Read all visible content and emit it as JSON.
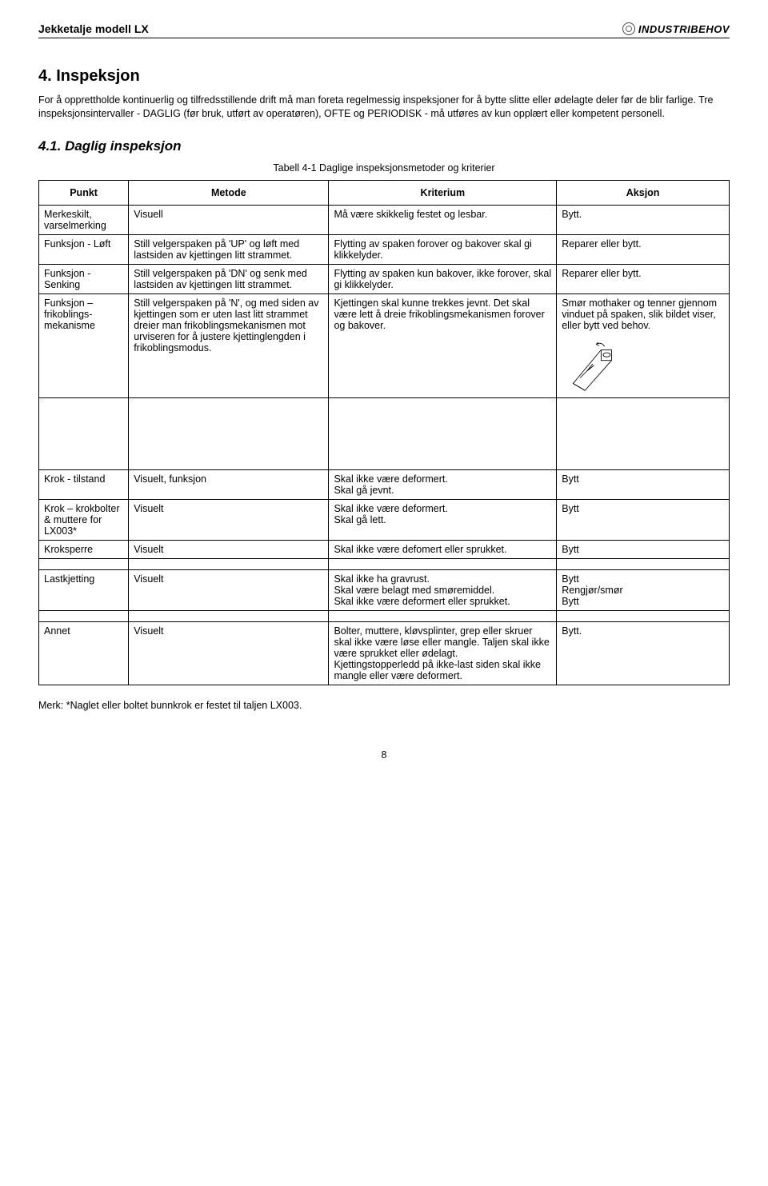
{
  "header": {
    "title": "Jekketalje modell LX",
    "logo_text": "INDUSTRIBEHOV"
  },
  "section": {
    "number_title": "4. Inspeksjon",
    "intro": "For å opprettholde kontinuerlig og tilfredsstillende drift må man foreta regelmessig inspeksjoner for å bytte slitte eller ødelagte deler før de blir farlige. Tre inspeksjonsintervaller - DAGLIG (før bruk, utført av operatøren), OFTE og PERIODISK - må utføres av kun opplært eller kompetent personell."
  },
  "subsection": {
    "title": "4.1. Daglig inspeksjon",
    "caption": "Tabell 4-1 Daglige inspeksjonsmetoder og kriterier"
  },
  "table": {
    "headers": [
      "Punkt",
      "Metode",
      "Kriterium",
      "Aksjon"
    ],
    "rows_a": [
      {
        "punkt": "Merkeskilt, varselmerking",
        "metode": "Visuell",
        "kriterium": "Må være skikkelig festet og lesbar.",
        "aksjon": "Bytt."
      },
      {
        "punkt": "Funksjon - Løft",
        "metode": "Still velgerspaken på 'UP' og løft med lastsiden av kjettingen litt strammet.",
        "kriterium": "Flytting av spaken forover og bakover skal gi klikkelyder.",
        "aksjon": "Reparer eller bytt."
      },
      {
        "punkt": "Funksjon - Senking",
        "metode": "Still velgerspaken på 'DN' og senk med lastsiden av kjettingen litt strammet.",
        "kriterium": "Flytting av spaken kun bakover, ikke forover, skal gi klikkelyder.",
        "aksjon": "Reparer eller bytt."
      },
      {
        "punkt": "Funksjon – frikoblings-mekanisme",
        "metode": "Still velgerspaken på 'N', og med siden av kjettingen som er uten last litt strammet dreier man frikoblingsmekanismen mot urviseren for å justere kjettinglengden i frikoblingsmodus.",
        "kriterium": "Kjettingen skal kunne trekkes jevnt. Det skal være lett å dreie frikoblingsmekanismen forover og bakover.",
        "aksjon": "Smør mothaker og tenner gjennom vinduet på spaken, slik bildet viser, eller bytt ved behov."
      }
    ],
    "rows_b": [
      {
        "punkt": "Krok - tilstand",
        "metode": "Visuelt, funksjon",
        "kriterium": "Skal ikke være deformert.\nSkal gå jevnt.",
        "aksjon": "Bytt"
      },
      {
        "punkt": "Krok – krokbolter & muttere for LX003*",
        "metode": "Visuelt",
        "kriterium": "Skal ikke være deformert.\nSkal gå lett.",
        "aksjon": "Bytt"
      },
      {
        "punkt": "Kroksperre",
        "metode": "Visuelt",
        "kriterium": "Skal ikke være defomert eller sprukket.",
        "aksjon": "Bytt"
      }
    ],
    "rows_c": [
      {
        "punkt": "Lastkjetting",
        "metode": "Visuelt",
        "kriterium": "Skal ikke ha gravrust.\nSkal være belagt med smøremiddel.\nSkal ikke være deformert eller sprukket.",
        "aksjon": "Bytt\nRengjør/smør\nBytt"
      }
    ],
    "rows_d": [
      {
        "punkt": "Annet",
        "metode": "Visuelt",
        "kriterium": "Bolter, muttere, kløvsplinter, grep eller skruer skal ikke være løse eller mangle. Taljen skal ikke være sprukket eller ødelagt.\nKjettingstopperledd på ikke-last siden skal ikke mangle eller være deformert.",
        "aksjon": "Bytt."
      }
    ]
  },
  "footnote": "Merk: *Naglet eller boltet bunnkrok er festet til taljen LX003.",
  "page_number": "8"
}
